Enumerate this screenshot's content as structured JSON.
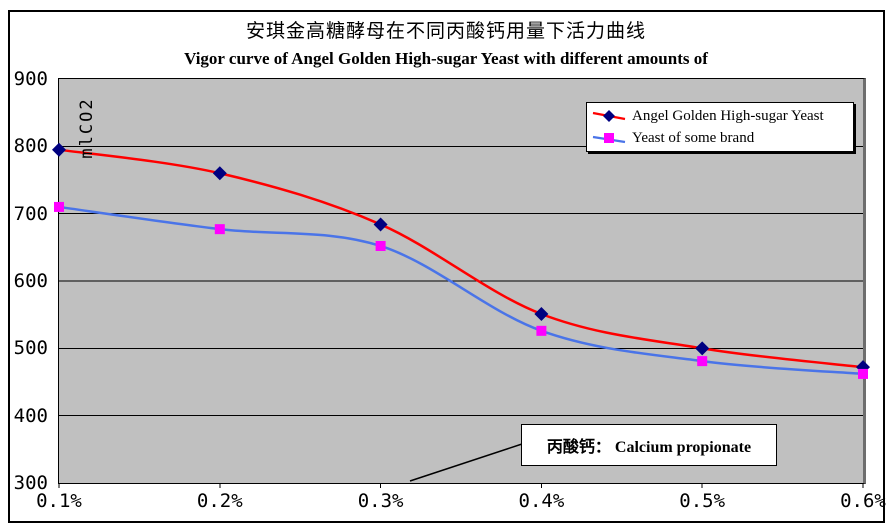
{
  "chart": {
    "title_zh": "安琪金高糖酵母在不同丙酸钙用量下活力曲线",
    "title_en": "Vigor curve of Angel Golden High-sugar Yeast with different amounts of",
    "y_unit_label": "mlCO2",
    "annotation_text": "丙酸钙： Calcium propionate"
  },
  "chart_data": {
    "type": "line",
    "title": "安琪金高糖酵母在不同丙酸钙用量下活力曲线 / Vigor curve of Angel Golden High-sugar Yeast with different amounts of",
    "xlabel": "",
    "ylabel": "mlCO2",
    "categories": [
      "0.1%",
      "0.2%",
      "0.3%",
      "0.4%",
      "0.5%",
      "0.6%"
    ],
    "series": [
      {
        "name": "Angel Golden High-sugar Yeast",
        "values": [
          795,
          760,
          684,
          551,
          500,
          472
        ],
        "line_color": "#ff0000",
        "marker": "diamond",
        "marker_color": "#000080"
      },
      {
        "name": "Yeast of some brand",
        "values": [
          710,
          677,
          652,
          526,
          481,
          462
        ],
        "line_color": "#4a74e8",
        "marker": "square",
        "marker_color": "#ff00ff"
      }
    ],
    "ylim": [
      300,
      900
    ],
    "yticks": [
      900,
      800,
      700,
      600,
      500,
      400,
      300
    ],
    "grid": true,
    "smoothed": true,
    "legend_position": "top-right",
    "plot_bg_color": "#c0c0c0",
    "grid_color": "#000000"
  }
}
